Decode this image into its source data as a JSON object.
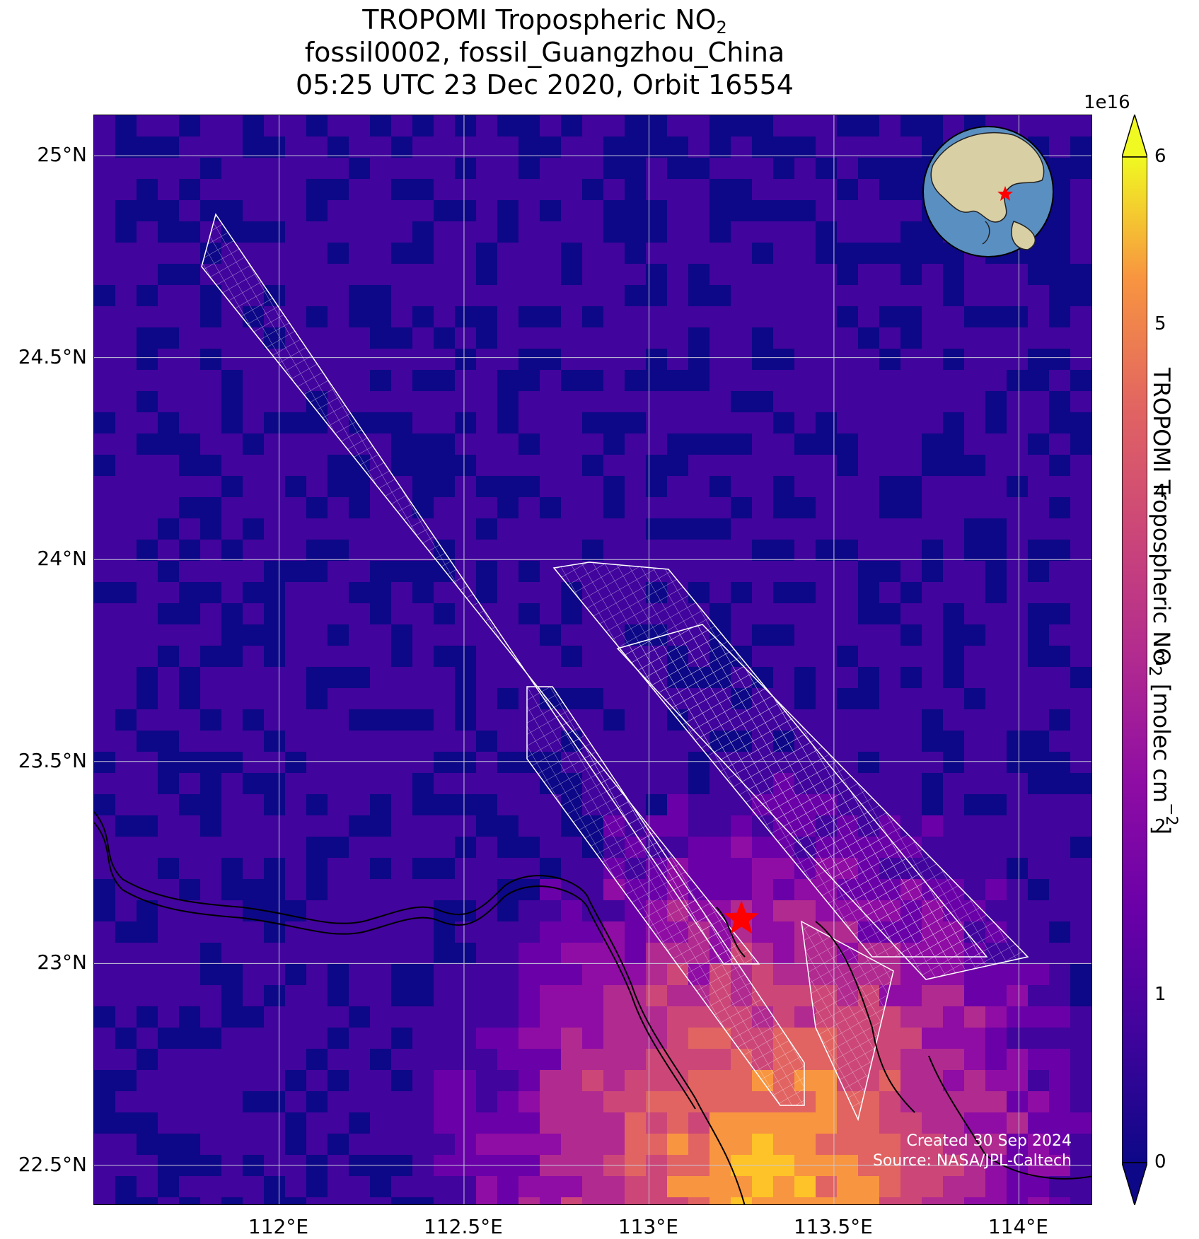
{
  "title": {
    "line1_prefix": "TROPOMI Tropospheric NO",
    "line1_sub": "2",
    "line2": "fossil0002, fossil_Guangzhou_China",
    "line3": "05:25 UTC 23 Dec 2020, Orbit 16554"
  },
  "map": {
    "lon_range": [
      111.5,
      114.2
    ],
    "lat_range": [
      22.4,
      25.1
    ],
    "lat_ticks": [
      {
        "value": 25.0,
        "label": "25°N"
      },
      {
        "value": 24.5,
        "label": "24.5°N"
      },
      {
        "value": 24.0,
        "label": "24°N"
      },
      {
        "value": 23.5,
        "label": "23.5°N"
      },
      {
        "value": 23.0,
        "label": "23°N"
      },
      {
        "value": 22.5,
        "label": "22.5°N"
      }
    ],
    "lon_ticks": [
      {
        "value": 112.0,
        "label": "112°E"
      },
      {
        "value": 112.5,
        "label": "112.5°E"
      },
      {
        "value": 113.0,
        "label": "113°E"
      },
      {
        "value": 113.5,
        "label": "113.5°E"
      },
      {
        "value": 114.0,
        "label": "114°E"
      }
    ],
    "target": {
      "lon": 113.25,
      "lat": 23.11,
      "marker": "red-star"
    },
    "inset_globe": "globe-icon",
    "gridlines": true
  },
  "colorbar": {
    "label_prefix": "TROPOMI Tropospheric NO",
    "label_sub": "2",
    "label_mid": " [molec cm",
    "label_sup": "−2",
    "label_end": "]",
    "exponent": "1e16",
    "range": [
      0,
      6
    ],
    "ticks": [
      "0",
      "1",
      "2",
      "3",
      "4",
      "5",
      "6"
    ],
    "colormap": "plasma",
    "extend": "both"
  },
  "credit": {
    "line1": "Created 30 Sep 2024",
    "line2": "Source: NASA/JPL-Caltech"
  }
}
